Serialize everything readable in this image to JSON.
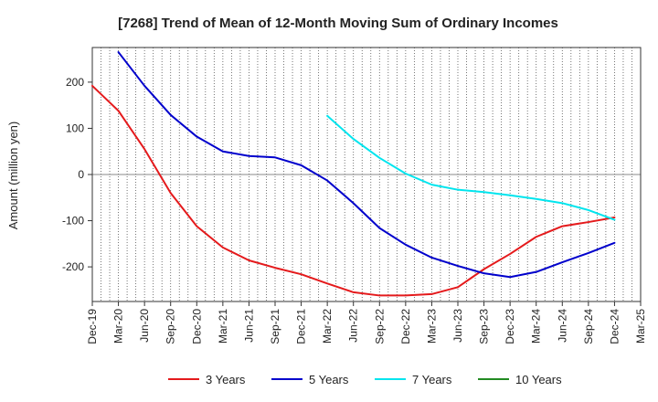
{
  "chart_data": {
    "type": "line",
    "title": "[7268]  Trend of Mean of 12-Month Moving Sum of Ordinary Incomes",
    "xlabel": "",
    "ylabel": "Amount (million yen)",
    "x": [
      "Dec-19",
      "Mar-20",
      "Jun-20",
      "Sep-20",
      "Dec-20",
      "Mar-21",
      "Jun-21",
      "Sep-21",
      "Dec-21",
      "Mar-22",
      "Jun-22",
      "Sep-22",
      "Dec-22",
      "Mar-23",
      "Jun-23",
      "Sep-23",
      "Dec-23",
      "Mar-24",
      "Jun-24",
      "Sep-24",
      "Dec-24",
      "Mar-25"
    ],
    "ylim": [
      -275,
      275
    ],
    "yticks": [
      200,
      100,
      0,
      -100,
      -200
    ],
    "ytick_labels": [
      "200",
      "100",
      "0",
      "-100",
      "-200"
    ],
    "grid": "vertical-dotted-monthly",
    "zero_line": true,
    "legend_position": "bottom",
    "series": [
      {
        "name": "3 Years",
        "color": "#e41a1c",
        "values": [
          192,
          138,
          55,
          -40,
          -112,
          -158,
          -186,
          -202,
          -216,
          -236,
          -255,
          -262,
          -262,
          -259,
          -244,
          -205,
          -172,
          -135,
          -112,
          -103,
          -93,
          null
        ]
      },
      {
        "name": "5 Years",
        "color": "#0000cc",
        "values": [
          null,
          265,
          192,
          129,
          82,
          50,
          40,
          37,
          20,
          -13,
          -62,
          -116,
          -152,
          -180,
          -198,
          -214,
          -222,
          -211,
          -190,
          -170,
          -148,
          null
        ]
      },
      {
        "name": "7 Years",
        "color": "#00e5ee",
        "values": [
          null,
          null,
          null,
          null,
          null,
          null,
          null,
          null,
          null,
          127,
          77,
          36,
          2,
          -22,
          -33,
          -38,
          -45,
          -53,
          -62,
          -77,
          -98,
          null
        ]
      },
      {
        "name": "10 Years",
        "color": "#228b22",
        "values": [
          null,
          null,
          null,
          null,
          null,
          null,
          null,
          null,
          null,
          null,
          null,
          null,
          null,
          null,
          null,
          null,
          null,
          null,
          null,
          null,
          null,
          null
        ]
      }
    ]
  }
}
